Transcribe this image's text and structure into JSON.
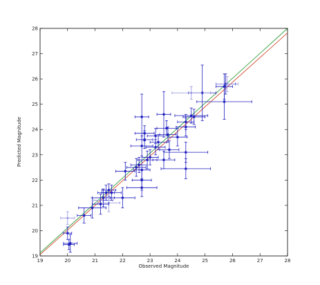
{
  "chart_data": {
    "type": "scatter",
    "title": "",
    "xlabel": "Observed Magnitude",
    "ylabel": "Predicted Magnitude",
    "xlim": [
      19,
      28
    ],
    "ylim": [
      19,
      28
    ],
    "xticks": [
      "19",
      "20",
      "21",
      "22",
      "23",
      "24",
      "25",
      "26",
      "27",
      "28"
    ],
    "yticks": [
      "19",
      "20",
      "21",
      "22",
      "23",
      "24",
      "25",
      "26",
      "27",
      "28"
    ],
    "grid": false,
    "colors": {
      "points": "#1f1fbf",
      "errorbars": "#1f1fbf",
      "errorbars_faint": "#8f8fdf",
      "line_green": "#2e9e3a",
      "line_red": "#d24a2b",
      "frame": "#000000"
    },
    "lines": [
      {
        "color": "green",
        "x": [
          19,
          28
        ],
        "y": [
          19.12,
          28.0
        ]
      },
      {
        "color": "red",
        "x": [
          19,
          28
        ],
        "y": [
          19.05,
          27.82
        ]
      }
    ],
    "points": [
      {
        "x": 20.0,
        "y": 19.9,
        "xerr": 0.15,
        "yerr": 0.25,
        "faint": false
      },
      {
        "x": 20.0,
        "y": 20.5,
        "xerr": 0.25,
        "yerr": 0.25,
        "faint": true
      },
      {
        "x": 20.1,
        "y": 19.5,
        "xerr": 0.25,
        "yerr": 0.35,
        "faint": false
      },
      {
        "x": 20.05,
        "y": 19.45,
        "xerr": 0.2,
        "yerr": 0.2,
        "faint": false
      },
      {
        "x": 20.6,
        "y": 20.6,
        "xerr": 0.25,
        "yerr": 0.3,
        "faint": false
      },
      {
        "x": 20.9,
        "y": 20.9,
        "xerr": 0.5,
        "yerr": 0.4,
        "faint": false
      },
      {
        "x": 21.3,
        "y": 21.2,
        "xerr": 0.35,
        "yerr": 0.3,
        "faint": true
      },
      {
        "x": 21.3,
        "y": 21.3,
        "xerr": 0.4,
        "yerr": 0.35,
        "faint": false
      },
      {
        "x": 21.4,
        "y": 21.5,
        "xerr": 0.3,
        "yerr": 0.3,
        "faint": false
      },
      {
        "x": 21.5,
        "y": 21.6,
        "xerr": 0.25,
        "yerr": 0.25,
        "faint": false
      },
      {
        "x": 21.5,
        "y": 21.1,
        "xerr": 0.4,
        "yerr": 0.35,
        "faint": true
      },
      {
        "x": 21.6,
        "y": 21.5,
        "xerr": 0.35,
        "yerr": 0.3,
        "faint": false
      },
      {
        "x": 21.2,
        "y": 21.05,
        "xerr": 0.3,
        "yerr": 0.4,
        "faint": false
      },
      {
        "x": 22.0,
        "y": 21.3,
        "xerr": 0.45,
        "yerr": 0.4,
        "faint": false
      },
      {
        "x": 22.1,
        "y": 22.35,
        "xerr": 0.35,
        "yerr": 0.35,
        "faint": false
      },
      {
        "x": 22.5,
        "y": 22.5,
        "xerr": 0.35,
        "yerr": 0.35,
        "faint": false
      },
      {
        "x": 22.6,
        "y": 22.6,
        "xerr": 0.3,
        "yerr": 0.3,
        "faint": false
      },
      {
        "x": 22.7,
        "y": 22.4,
        "xerr": 0.3,
        "yerr": 0.4,
        "faint": false
      },
      {
        "x": 22.7,
        "y": 21.7,
        "xerr": 0.55,
        "yerr": 0.35,
        "faint": false
      },
      {
        "x": 22.7,
        "y": 22.0,
        "xerr": 0.35,
        "yerr": 0.4,
        "faint": false
      },
      {
        "x": 22.7,
        "y": 23.35,
        "xerr": 0.4,
        "yerr": 0.4,
        "faint": false
      },
      {
        "x": 22.7,
        "y": 24.5,
        "xerr": 0.25,
        "yerr": 0.9,
        "faint": false
      },
      {
        "x": 22.8,
        "y": 23.6,
        "xerr": 0.3,
        "yerr": 0.35,
        "faint": false
      },
      {
        "x": 22.8,
        "y": 23.85,
        "xerr": 0.35,
        "yerr": 0.3,
        "faint": false
      },
      {
        "x": 22.9,
        "y": 22.8,
        "xerr": 0.35,
        "yerr": 0.35,
        "faint": false
      },
      {
        "x": 23.0,
        "y": 22.9,
        "xerr": 0.3,
        "yerr": 0.3,
        "faint": false
      },
      {
        "x": 23.2,
        "y": 23.3,
        "xerr": 0.35,
        "yerr": 0.3,
        "faint": false
      },
      {
        "x": 23.2,
        "y": 23.75,
        "xerr": 0.3,
        "yerr": 0.3,
        "faint": false
      },
      {
        "x": 23.3,
        "y": 23.5,
        "xerr": 0.3,
        "yerr": 0.3,
        "faint": false
      },
      {
        "x": 23.5,
        "y": 22.8,
        "xerr": 0.4,
        "yerr": 0.35,
        "faint": false
      },
      {
        "x": 23.5,
        "y": 24.6,
        "xerr": 0.25,
        "yerr": 0.9,
        "faint": false
      },
      {
        "x": 23.6,
        "y": 24.05,
        "xerr": 0.35,
        "yerr": 0.3,
        "faint": false
      },
      {
        "x": 23.65,
        "y": 23.8,
        "xerr": 0.3,
        "yerr": 0.3,
        "faint": false
      },
      {
        "x": 23.7,
        "y": 23.2,
        "xerr": 0.35,
        "yerr": 0.35,
        "faint": false
      },
      {
        "x": 24.0,
        "y": 23.7,
        "xerr": 0.35,
        "yerr": 0.35,
        "faint": false
      },
      {
        "x": 24.3,
        "y": 24.1,
        "xerr": 0.35,
        "yerr": 0.35,
        "faint": false
      },
      {
        "x": 24.3,
        "y": 23.1,
        "xerr": 0.8,
        "yerr": 0.4,
        "faint": false
      },
      {
        "x": 24.3,
        "y": 22.45,
        "xerr": 0.9,
        "yerr": 0.4,
        "faint": false
      },
      {
        "x": 24.3,
        "y": 24.3,
        "xerr": 0.3,
        "yerr": 0.3,
        "faint": false
      },
      {
        "x": 24.5,
        "y": 24.55,
        "xerr": 0.6,
        "yerr": 0.3,
        "faint": false
      },
      {
        "x": 24.6,
        "y": 24.5,
        "xerr": 0.4,
        "yerr": 0.3,
        "faint": false
      },
      {
        "x": 24.9,
        "y": 25.45,
        "xerr": 0.5,
        "yerr": 1.1,
        "faint": false
      },
      {
        "x": 24.5,
        "y": 25.45,
        "xerr": 0.7,
        "yerr": 0.25,
        "faint": true
      },
      {
        "x": 25.7,
        "y": 25.1,
        "xerr": 1.0,
        "yerr": 0.7,
        "faint": false
      },
      {
        "x": 25.7,
        "y": 25.7,
        "xerr": 0.3,
        "yerr": 0.5,
        "faint": false
      },
      {
        "x": 25.75,
        "y": 25.8,
        "xerr": 0.35,
        "yerr": 0.4,
        "faint": false
      },
      {
        "x": 25.8,
        "y": 25.8,
        "xerr": 0.4,
        "yerr": 0.3,
        "faint": true
      }
    ]
  }
}
